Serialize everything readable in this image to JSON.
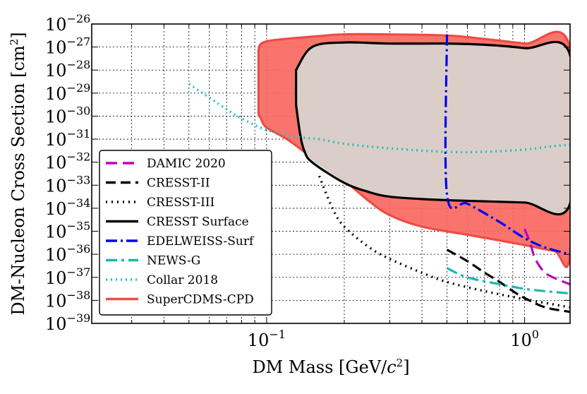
{
  "chart_data": {
    "type": "line",
    "title": "",
    "xlabel_main": "DM Mass [GeV/",
    "xlabel_c": "c",
    "xlabel_exp": "2",
    "xlabel_close": "]",
    "ylabel_main": "DM-Nucleon Cross Section [cm",
    "ylabel_exp": "2",
    "ylabel_close": "]",
    "xscale": "log",
    "yscale": "log",
    "xlim": [
      0.021,
      1.5
    ],
    "ylim": [
      1e-39,
      1e-26
    ],
    "grid": true,
    "legend_location": "lower-left",
    "x_ticks": [
      {
        "value": 0.1,
        "base": "10",
        "exp": "−1"
      },
      {
        "value": 1.0,
        "base": "10",
        "exp": "0"
      }
    ],
    "y_ticks": [
      {
        "exp_value": -26,
        "base": "10",
        "exp": "−26"
      },
      {
        "exp_value": -27,
        "base": "10",
        "exp": "−27"
      },
      {
        "exp_value": -28,
        "base": "10",
        "exp": "−28"
      },
      {
        "exp_value": -29,
        "base": "10",
        "exp": "−29"
      },
      {
        "exp_value": -30,
        "base": "10",
        "exp": "−30"
      },
      {
        "exp_value": -31,
        "base": "10",
        "exp": "−31"
      },
      {
        "exp_value": -32,
        "base": "10",
        "exp": "−32"
      },
      {
        "exp_value": -33,
        "base": "10",
        "exp": "−33"
      },
      {
        "exp_value": -34,
        "base": "10",
        "exp": "−34"
      },
      {
        "exp_value": -35,
        "base": "10",
        "exp": "−35"
      },
      {
        "exp_value": -36,
        "base": "10",
        "exp": "−36"
      },
      {
        "exp_value": -37,
        "base": "10",
        "exp": "−37"
      },
      {
        "exp_value": -38,
        "base": "10",
        "exp": "−38"
      },
      {
        "exp_value": -39,
        "base": "10",
        "exp": "−39"
      }
    ],
    "regions": [
      {
        "name": "SuperCDMS-CPD",
        "color": "#f8685f",
        "edge": "#f04a44",
        "opacity": 0.92,
        "boundary_log10": [
          [
            0.093,
            -27.1
          ],
          [
            0.1,
            -26.75
          ],
          [
            0.15,
            -26.55
          ],
          [
            0.2,
            -26.45
          ],
          [
            0.3,
            -26.45
          ],
          [
            0.5,
            -26.5
          ],
          [
            0.7,
            -26.65
          ],
          [
            1.0,
            -26.85
          ],
          [
            1.5,
            -27.05
          ],
          [
            1.5,
            -35.9
          ],
          [
            1.3,
            -35.85
          ],
          [
            1.0,
            -35.6
          ],
          [
            0.8,
            -35.4
          ],
          [
            0.6,
            -35.15
          ],
          [
            0.4,
            -34.8
          ],
          [
            0.3,
            -34.3
          ],
          [
            0.25,
            -33.7
          ],
          [
            0.2,
            -32.8
          ],
          [
            0.15,
            -31.8
          ],
          [
            0.12,
            -31.0
          ],
          [
            0.1,
            -30.5
          ],
          [
            0.095,
            -30.1
          ],
          [
            0.093,
            -29.9
          ]
        ]
      },
      {
        "name": "CRESST Surface",
        "color": "#d6dbd6",
        "edge": "#000000",
        "opacity": 0.88,
        "boundary_log10": [
          [
            0.13,
            -28.0
          ],
          [
            0.15,
            -27.0
          ],
          [
            0.2,
            -26.8
          ],
          [
            0.3,
            -26.85
          ],
          [
            0.5,
            -26.85
          ],
          [
            0.7,
            -26.9
          ],
          [
            1.0,
            -27.05
          ],
          [
            1.5,
            -27.35
          ],
          [
            1.5,
            -33.8
          ],
          [
            1.0,
            -33.75
          ],
          [
            0.7,
            -33.7
          ],
          [
            0.5,
            -33.65
          ],
          [
            0.4,
            -33.6
          ],
          [
            0.3,
            -33.5
          ],
          [
            0.25,
            -33.3
          ],
          [
            0.2,
            -32.9
          ],
          [
            0.15,
            -32.0
          ],
          [
            0.14,
            -31.5
          ],
          [
            0.135,
            -30.8
          ],
          [
            0.13,
            -29.5
          ]
        ]
      }
    ],
    "series": [
      {
        "name": "DAMIC 2020",
        "color": "#bf00bf",
        "dash": "16,8",
        "width": 3.2,
        "points_log10": [
          [
            1.0,
            -34.9
          ],
          [
            1.05,
            -35.5
          ],
          [
            1.1,
            -36.2
          ],
          [
            1.2,
            -36.8
          ],
          [
            1.35,
            -37.1
          ],
          [
            1.5,
            -37.3
          ]
        ]
      },
      {
        "name": "CRESST-II",
        "color": "#000000",
        "dash": "14,7",
        "width": 3.2,
        "points_log10": [
          [
            0.5,
            -35.8
          ],
          [
            0.6,
            -36.3
          ],
          [
            0.7,
            -36.8
          ],
          [
            0.8,
            -37.2
          ],
          [
            0.9,
            -37.6
          ],
          [
            1.0,
            -37.9
          ],
          [
            1.2,
            -38.3
          ],
          [
            1.5,
            -38.5
          ]
        ]
      },
      {
        "name": "CRESST-III",
        "color": "#000000",
        "dash": "2,6",
        "width": 3.4,
        "points_log10": [
          [
            0.16,
            -32.6
          ],
          [
            0.18,
            -34.0
          ],
          [
            0.2,
            -34.8
          ],
          [
            0.25,
            -35.7
          ],
          [
            0.3,
            -36.2
          ],
          [
            0.4,
            -36.8
          ],
          [
            0.5,
            -37.2
          ],
          [
            0.7,
            -37.6
          ],
          [
            1.0,
            -37.95
          ],
          [
            1.5,
            -38.3
          ]
        ]
      },
      {
        "name": "CRESST Surface",
        "color": "#000000",
        "dash": "",
        "width": 3.2,
        "points_log10": []
      },
      {
        "name": "EDELWEISS-Surf",
        "color": "#0000ee",
        "dash": "16,5,3,5",
        "width": 3.2,
        "points_log10": [
          [
            0.5,
            -26.45
          ],
          [
            0.5,
            -33.4
          ],
          [
            0.6,
            -33.8
          ],
          [
            0.8,
            -34.6
          ],
          [
            1.0,
            -35.3
          ],
          [
            1.2,
            -35.7
          ],
          [
            1.5,
            -36.0
          ]
        ]
      },
      {
        "name": "NEWS-G",
        "color": "#1ab8b0",
        "dash": "16,6,4,6",
        "width": 3.2,
        "points_log10": [
          [
            0.5,
            -36.6
          ],
          [
            0.6,
            -37.0
          ],
          [
            0.8,
            -37.3
          ],
          [
            1.0,
            -37.5
          ],
          [
            1.2,
            -37.6
          ],
          [
            1.5,
            -37.7
          ]
        ]
      },
      {
        "name": "Collar 2018",
        "color": "#20c0c0",
        "dash": "2,5",
        "width": 3.4,
        "points_log10": [
          [
            0.05,
            -28.6
          ],
          [
            0.06,
            -29.2
          ],
          [
            0.07,
            -29.7
          ],
          [
            0.08,
            -30.1
          ],
          [
            0.1,
            -30.6
          ],
          [
            0.13,
            -30.9
          ],
          [
            0.16,
            -31.0
          ],
          [
            0.2,
            -31.2
          ],
          [
            0.3,
            -31.4
          ],
          [
            0.5,
            -31.55
          ],
          [
            0.7,
            -31.55
          ],
          [
            1.0,
            -31.45
          ],
          [
            1.3,
            -31.3
          ],
          [
            1.5,
            -31.25
          ]
        ]
      },
      {
        "name": "SuperCDMS-CPD",
        "color": "#f04a44",
        "dash": "",
        "width": 3.2,
        "points_log10": []
      }
    ],
    "legend": [
      {
        "label": "DAMIC 2020",
        "color": "#bf00bf",
        "dash": "16,8"
      },
      {
        "label": "CRESST-II",
        "color": "#000000",
        "dash": "14,7"
      },
      {
        "label": "CRESST-III",
        "color": "#000000",
        "dash": "2,6"
      },
      {
        "label": "CRESST Surface",
        "color": "#000000",
        "dash": ""
      },
      {
        "label": "EDELWEISS-Surf",
        "color": "#0000ee",
        "dash": "16,5,3,5"
      },
      {
        "label": "NEWS-G",
        "color": "#1ab8b0",
        "dash": "16,6,4,6"
      },
      {
        "label": "Collar 2018",
        "color": "#20c0c0",
        "dash": "2,5"
      },
      {
        "label": "SuperCDMS-CPD",
        "color": "#f04a44",
        "dash": ""
      }
    ]
  }
}
